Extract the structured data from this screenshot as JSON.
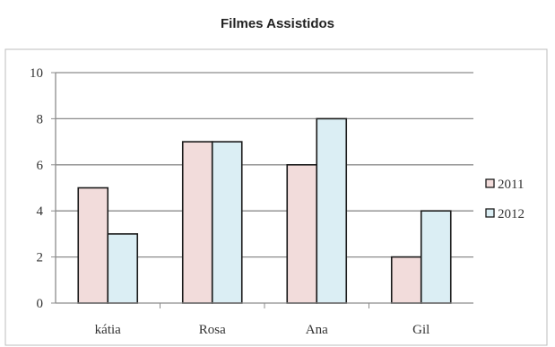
{
  "chart_data": {
    "type": "bar",
    "title": "Filmes Assistidos",
    "categories": [
      "kátia",
      "Rosa",
      "Ana",
      "Gil"
    ],
    "series": [
      {
        "name": "2011",
        "values": [
          5,
          7,
          6,
          2
        ],
        "color": "#f2dcdb"
      },
      {
        "name": "2012",
        "values": [
          3,
          7,
          8,
          4
        ],
        "color": "#dbeef4"
      }
    ],
    "ylim": [
      0,
      10
    ],
    "yticks": [
      "0",
      "2",
      "4",
      "6",
      "8",
      "10"
    ],
    "grid": true,
    "legend": "right"
  }
}
